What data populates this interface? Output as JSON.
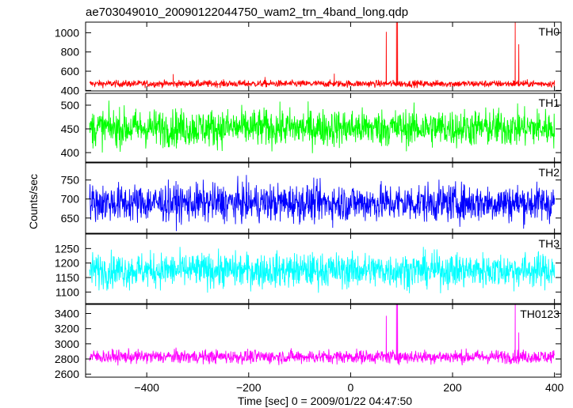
{
  "title": "ae703049010_20090122044750_wam2_trn_4band_long.qdp",
  "chart_data": {
    "type": "line",
    "title": "ae703049010_20090122044750_wam2_trn_4band_long.qdp",
    "xlabel": "Time [sec] 0 = 2009/01/22 04:47:50",
    "ylabel": "Counts/sec",
    "xlim": [
      -520,
      413
    ],
    "x_ticks": [
      -400,
      -200,
      0,
      200,
      400
    ],
    "grid": false,
    "panels": [
      {
        "name": "TH0",
        "color": "#ff0000",
        "ylim": [
          395,
          1110
        ],
        "y_ticks": [
          400,
          600,
          800,
          1000
        ],
        "baseline": 470,
        "noise": 18,
        "x_range": [
          -512,
          400
        ],
        "spikes": [
          {
            "x": -348,
            "y": 570
          },
          {
            "x": -168,
            "y": 540
          },
          {
            "x": -32,
            "y": 575
          },
          {
            "x": 70,
            "y": 1010
          },
          {
            "x": 90,
            "y": 1110
          },
          {
            "x": 92,
            "y": 1110
          },
          {
            "x": 323,
            "y": 1110
          },
          {
            "x": 330,
            "y": 880
          }
        ]
      },
      {
        "name": "TH1",
        "color": "#00ff00",
        "ylim": [
          380,
          525
        ],
        "y_ticks": [
          400,
          450,
          500
        ],
        "baseline": 452,
        "noise": 20,
        "x_range": [
          -512,
          400
        ],
        "spikes": []
      },
      {
        "name": "TH2",
        "color": "#0000ff",
        "ylim": [
          610,
          795
        ],
        "y_ticks": [
          650,
          700,
          750
        ],
        "baseline": 690,
        "noise": 25,
        "x_range": [
          -512,
          400
        ],
        "spikes": []
      },
      {
        "name": "TH3",
        "color": "#00ffff",
        "ylim": [
          1060,
          1300
        ],
        "y_ticks": [
          1100,
          1150,
          1200,
          1250
        ],
        "baseline": 1175,
        "noise": 30,
        "x_range": [
          -512,
          400
        ],
        "spikes": []
      },
      {
        "name": "TH0123",
        "color": "#ff00ff",
        "ylim": [
          2560,
          3520
        ],
        "y_ticks": [
          2600,
          2800,
          3000,
          3200,
          3400
        ],
        "baseline": 2830,
        "noise": 45,
        "x_range": [
          -512,
          400
        ],
        "spikes": [
          {
            "x": 70,
            "y": 3370
          },
          {
            "x": 90,
            "y": 3520
          },
          {
            "x": 92,
            "y": 3520
          },
          {
            "x": 323,
            "y": 3520
          },
          {
            "x": 330,
            "y": 3150
          }
        ]
      }
    ]
  }
}
